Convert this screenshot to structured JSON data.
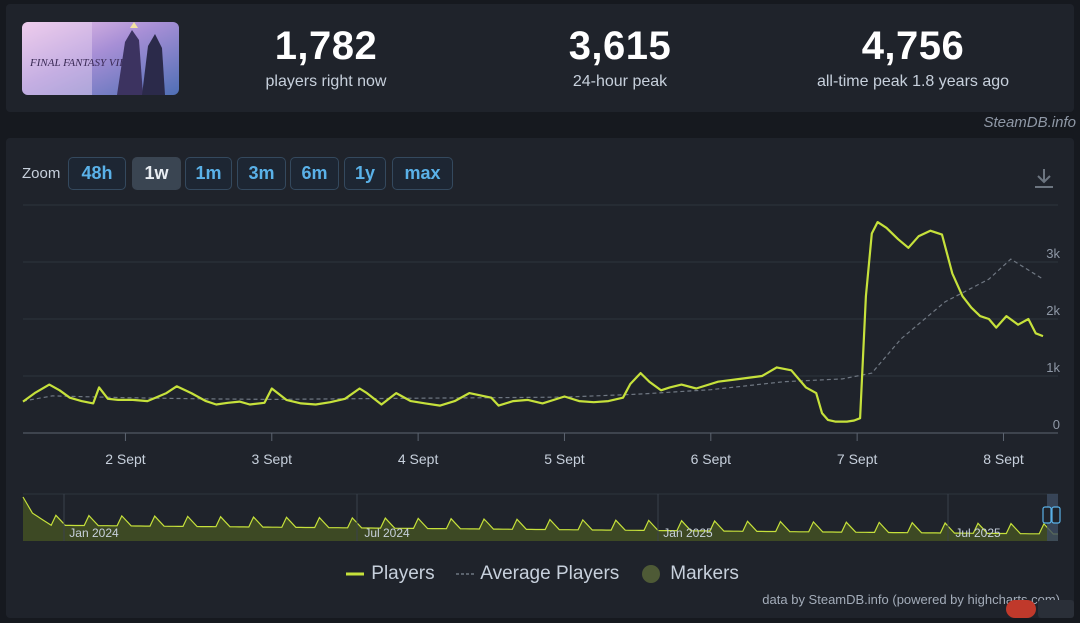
{
  "stats": [
    {
      "value": "1,782",
      "label": "players right now"
    },
    {
      "value": "3,615",
      "label": "24-hour peak"
    },
    {
      "value": "4,756",
      "label": "all-time peak 1.8 years ago"
    }
  ],
  "brand": "SteamDB.info",
  "zoom": {
    "label": "Zoom",
    "buttons": [
      "48h",
      "1w",
      "1m",
      "3m",
      "6m",
      "1y",
      "max"
    ],
    "active": "1w"
  },
  "legend": {
    "players": "Players",
    "average": "Average Players",
    "markers": "Markers"
  },
  "credits": "data by SteamDB.info (powered by highcharts.com)",
  "colors": {
    "players": "#c6e13b",
    "average": "#6f7782",
    "markers": "#4e5a36",
    "navigator_fill": "#4a5a22",
    "accent": "#5ab1e8"
  },
  "chart_data": {
    "type": "line",
    "x_unit": "days from Sept 1 00:00",
    "xlim": [
      1.3,
      8.27
    ],
    "ylim": [
      0,
      4000
    ],
    "yticks": [
      0,
      1000,
      2000,
      3000
    ],
    "ytick_labels": [
      "0",
      "1k",
      "2k",
      "3k"
    ],
    "xticks": [
      2,
      3,
      4,
      5,
      6,
      7,
      8
    ],
    "xtick_labels": [
      "2 Sept",
      "3 Sept",
      "4 Sept",
      "5 Sept",
      "6 Sept",
      "7 Sept",
      "8 Sept"
    ],
    "series": [
      {
        "name": "Players",
        "x": [
          1.3,
          1.38,
          1.48,
          1.55,
          1.62,
          1.7,
          1.78,
          1.82,
          1.88,
          1.95,
          2.05,
          2.15,
          2.28,
          2.35,
          2.45,
          2.55,
          2.62,
          2.7,
          2.78,
          2.85,
          2.95,
          3.0,
          3.1,
          3.2,
          3.3,
          3.4,
          3.5,
          3.6,
          3.65,
          3.75,
          3.85,
          3.95,
          4.05,
          4.15,
          4.25,
          4.35,
          4.5,
          4.55,
          4.65,
          4.75,
          4.85,
          5.0,
          5.1,
          5.2,
          5.3,
          5.4,
          5.45,
          5.52,
          5.58,
          5.66,
          5.72,
          5.8,
          5.9,
          6.05,
          6.2,
          6.35,
          6.45,
          6.55,
          6.65,
          6.72,
          6.76,
          6.8,
          6.85,
          6.93,
          6.98,
          7.02,
          7.06,
          7.1,
          7.14,
          7.2,
          7.28,
          7.35,
          7.42,
          7.5,
          7.58,
          7.65,
          7.72,
          7.78,
          7.84,
          7.9,
          7.95,
          8.02,
          8.1,
          8.17,
          8.22,
          8.27
        ],
        "y": [
          550,
          700,
          850,
          750,
          620,
          560,
          520,
          800,
          600,
          580,
          580,
          560,
          700,
          820,
          700,
          560,
          500,
          530,
          550,
          500,
          530,
          780,
          580,
          520,
          500,
          540,
          600,
          780,
          700,
          500,
          700,
          560,
          520,
          480,
          560,
          700,
          620,
          480,
          560,
          580,
          520,
          640,
          560,
          540,
          560,
          620,
          860,
          1050,
          900,
          750,
          800,
          850,
          780,
          900,
          950,
          1000,
          1150,
          1100,
          800,
          700,
          350,
          230,
          200,
          200,
          220,
          260,
          2400,
          3500,
          3700,
          3600,
          3400,
          3250,
          3450,
          3550,
          3480,
          2800,
          2400,
          2200,
          2050,
          2000,
          1850,
          2050,
          1900,
          2000,
          1750,
          1700
        ]
      },
      {
        "name": "Average Players",
        "x": [
          1.3,
          1.5,
          2.0,
          2.5,
          3.0,
          3.5,
          4.0,
          4.5,
          5.0,
          5.5,
          6.0,
          6.5,
          6.9,
          7.1,
          7.3,
          7.6,
          7.9,
          8.05,
          8.27
        ],
        "y": [
          560,
          650,
          620,
          600,
          590,
          600,
          610,
          620,
          630,
          680,
          760,
          900,
          950,
          1050,
          1650,
          2300,
          2700,
          3050,
          2700
        ]
      }
    ]
  },
  "navigator": {
    "labels": [
      "Jan 2024",
      "Jul 2024",
      "Jan 2025",
      "Jul 2025"
    ]
  }
}
